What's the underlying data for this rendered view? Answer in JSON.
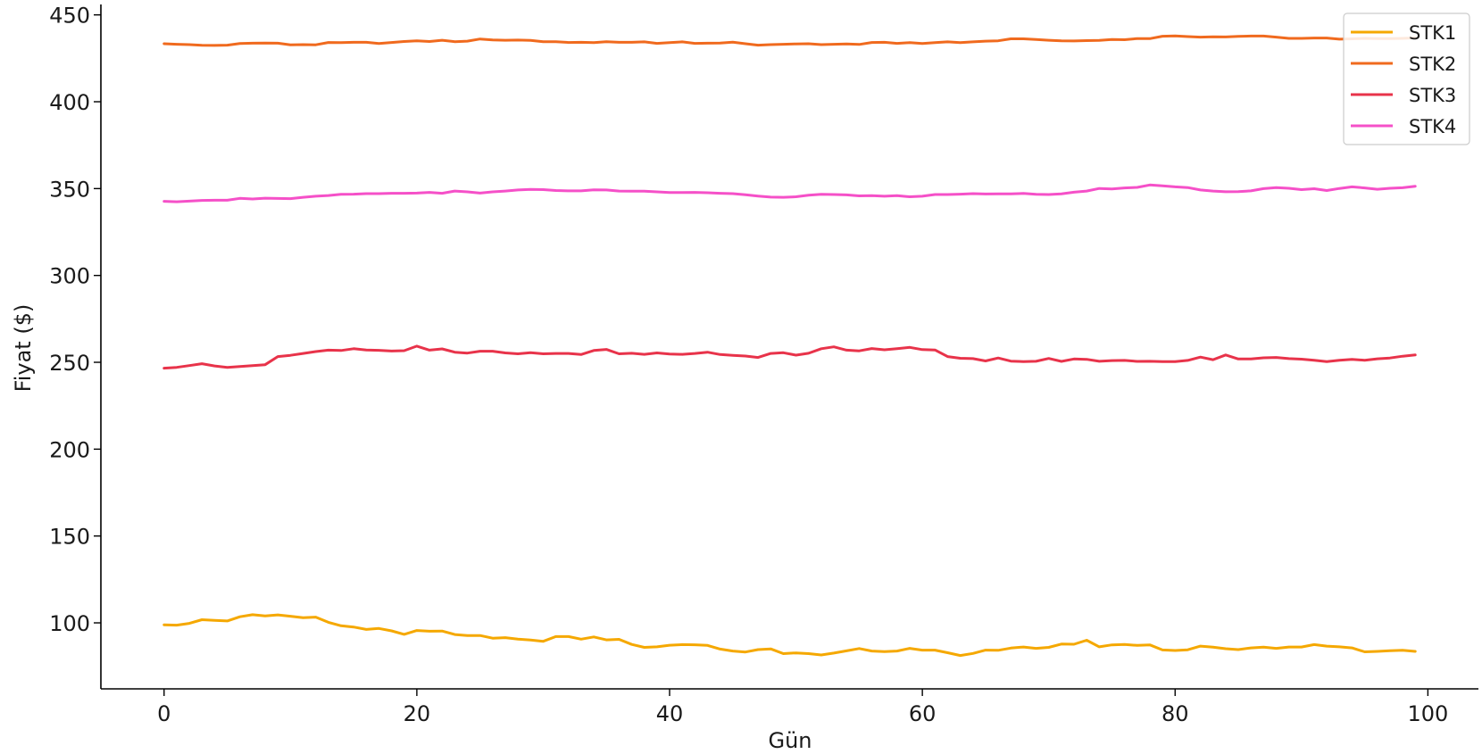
{
  "chart_data": {
    "type": "line",
    "xlabel": "Gün",
    "ylabel": "Fiyat ($)",
    "xlim": [
      -5,
      104
    ],
    "ylim": [
      62,
      456
    ],
    "xticks": [
      0,
      20,
      40,
      60,
      80,
      100
    ],
    "yticks": [
      100,
      150,
      200,
      250,
      300,
      350,
      400,
      450
    ],
    "grid": false,
    "legend_position": "top-right",
    "x": [
      0,
      1,
      2,
      3,
      4,
      5,
      6,
      7,
      8,
      9,
      10,
      11,
      12,
      13,
      14,
      15,
      16,
      17,
      18,
      19,
      20,
      21,
      22,
      23,
      24,
      25,
      26,
      27,
      28,
      29,
      30,
      31,
      32,
      33,
      34,
      35,
      36,
      37,
      38,
      39,
      40,
      41,
      42,
      43,
      44,
      45,
      46,
      47,
      48,
      49,
      50,
      51,
      52,
      53,
      54,
      55,
      56,
      57,
      58,
      59,
      60,
      61,
      62,
      63,
      64,
      65,
      66,
      67,
      68,
      69,
      70,
      71,
      72,
      73,
      74,
      75,
      76,
      77,
      78,
      79,
      80,
      81,
      82,
      83,
      84,
      85,
      86,
      87,
      88,
      89,
      90,
      91,
      92,
      93,
      94,
      95,
      96,
      97,
      98,
      99
    ],
    "series": [
      {
        "name": "STK1",
        "color": "#f5a800",
        "values": [
          98.9,
          98.7,
          99.7,
          101.8,
          101.4,
          101.1,
          103.5,
          104.7,
          104.0,
          104.6,
          103.8,
          103.0,
          103.3,
          100.3,
          98.3,
          97.6,
          96.2,
          96.8,
          95.4,
          93.4,
          95.6,
          95.2,
          95.3,
          93.3,
          92.7,
          92.7,
          91.2,
          91.5,
          90.6,
          90.1,
          89.4,
          92.1,
          92.1,
          90.6,
          91.9,
          90.2,
          90.5,
          87.6,
          85.9,
          86.2,
          87.1,
          87.5,
          87.4,
          87.0,
          84.9,
          83.8,
          83.2,
          84.6,
          85.0,
          82.3,
          82.7,
          82.3,
          81.5,
          82.6,
          83.9,
          85.2,
          83.8,
          83.4,
          83.8,
          85.3,
          84.3,
          84.3,
          82.8,
          81.2,
          82.4,
          84.3,
          84.2,
          85.5,
          86.1,
          85.3,
          85.9,
          87.8,
          87.7,
          90.0,
          86.2,
          87.3,
          87.6,
          87.0,
          87.3,
          84.4,
          84.1,
          84.5,
          86.6,
          86.0,
          85.1,
          84.6,
          85.6,
          86.0,
          85.3,
          86.1,
          86.1,
          87.5,
          86.6,
          86.2,
          85.6,
          83.3,
          83.6,
          84.0,
          84.2,
          83.6
        ]
      },
      {
        "name": "STK2",
        "color": "#f06a1e",
        "values": [
          433.4,
          433.1,
          432.9,
          432.5,
          432.4,
          432.6,
          433.5,
          433.7,
          433.8,
          433.7,
          432.8,
          432.9,
          432.8,
          434.1,
          434.0,
          434.2,
          434.2,
          433.5,
          434.1,
          434.7,
          435.1,
          434.7,
          435.4,
          434.6,
          434.9,
          436.1,
          435.6,
          435.4,
          435.5,
          435.3,
          434.6,
          434.6,
          434.1,
          434.2,
          434.0,
          434.6,
          434.2,
          434.2,
          434.5,
          433.6,
          434.0,
          434.5,
          433.6,
          433.7,
          433.8,
          434.3,
          433.4,
          432.6,
          432.9,
          433.1,
          433.3,
          433.4,
          432.9,
          433.1,
          433.3,
          433.0,
          434.1,
          434.2,
          433.6,
          434.0,
          433.5,
          434.0,
          434.5,
          434.0,
          434.5,
          434.9,
          435.1,
          436.2,
          436.2,
          435.8,
          435.4,
          435.1,
          435.0,
          435.2,
          435.3,
          435.8,
          435.7,
          436.4,
          436.3,
          437.7,
          437.9,
          437.5,
          437.2,
          437.4,
          437.3,
          437.6,
          437.8,
          437.8,
          437.2,
          436.5,
          436.5,
          436.7,
          436.7,
          436.0,
          436.2,
          436.5,
          436.4,
          436.3,
          436.5,
          436.8
        ]
      },
      {
        "name": "STK3",
        "color": "#e8334a",
        "values": [
          246.6,
          247.1,
          248.1,
          249.2,
          247.9,
          247.1,
          247.6,
          248.1,
          248.6,
          253.3,
          254.0,
          255.1,
          256.2,
          257.0,
          256.8,
          257.8,
          257.1,
          256.9,
          256.5,
          256.7,
          259.3,
          257.0,
          257.7,
          255.8,
          255.3,
          256.4,
          256.4,
          255.4,
          254.9,
          255.5,
          254.9,
          255.1,
          255.1,
          254.5,
          256.8,
          257.4,
          254.9,
          255.2,
          254.6,
          255.4,
          254.8,
          254.6,
          255.1,
          255.8,
          254.5,
          254.0,
          253.6,
          252.8,
          255.1,
          255.5,
          254.1,
          255.2,
          257.8,
          258.9,
          257.0,
          256.6,
          257.9,
          257.2,
          257.8,
          258.6,
          257.3,
          257.1,
          253.3,
          252.3,
          252.1,
          250.8,
          252.5,
          250.7,
          250.4,
          250.6,
          252.2,
          250.5,
          251.9,
          251.7,
          250.6,
          251.0,
          251.1,
          250.5,
          250.6,
          250.4,
          250.4,
          251.1,
          253.0,
          251.5,
          254.2,
          251.9,
          251.9,
          252.6,
          252.8,
          252.1,
          251.8,
          251.2,
          250.4,
          251.2,
          251.7,
          251.2,
          252.0,
          252.5,
          253.5,
          254.2
        ]
      },
      {
        "name": "STK4",
        "color": "#f550c8",
        "values": [
          342.7,
          342.4,
          342.8,
          343.2,
          343.3,
          343.3,
          344.4,
          344.0,
          344.5,
          344.3,
          344.2,
          345.0,
          345.6,
          346.0,
          346.7,
          346.8,
          347.1,
          347.1,
          347.3,
          347.3,
          347.4,
          347.8,
          347.3,
          348.6,
          348.1,
          347.4,
          348.1,
          348.6,
          349.2,
          349.5,
          349.4,
          348.9,
          348.7,
          348.7,
          349.3,
          349.2,
          348.6,
          348.5,
          348.5,
          348.1,
          347.7,
          347.7,
          347.8,
          347.6,
          347.3,
          347.1,
          346.5,
          345.7,
          345.1,
          345.0,
          345.3,
          346.2,
          346.7,
          346.6,
          346.4,
          345.8,
          345.9,
          345.6,
          345.9,
          345.3,
          345.6,
          346.6,
          346.6,
          346.8,
          347.1,
          346.9,
          347.0,
          347.0,
          347.2,
          346.7,
          346.6,
          347.0,
          347.9,
          348.6,
          350.1,
          349.8,
          350.4,
          350.7,
          352.1,
          351.6,
          351.0,
          350.6,
          349.2,
          348.6,
          348.2,
          348.3,
          348.7,
          350.0,
          350.6,
          350.2,
          349.4,
          349.9,
          348.9,
          350.1,
          351.0,
          350.4,
          349.6,
          350.2,
          350.5,
          351.3
        ]
      }
    ]
  }
}
